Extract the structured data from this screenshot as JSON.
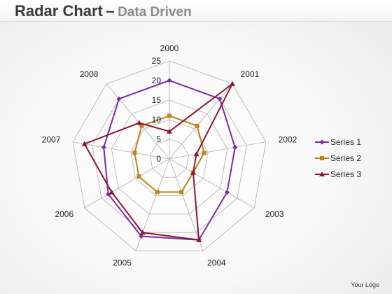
{
  "header": {
    "title": "Radar Chart",
    "dash": "–",
    "subtitle": "Data Driven"
  },
  "footer": {
    "logo_text": "Your Logo"
  },
  "colors": {
    "series1": "#7b2ca5",
    "series2": "#c08418",
    "series3": "#8a1733",
    "grid": "#bdbdbd"
  },
  "chart_data": {
    "type": "radar",
    "categories": [
      "2000",
      "2001",
      "2002",
      "2003",
      "2004",
      "2005",
      "2006",
      "2007",
      "2008"
    ],
    "scale_labels": [
      "0",
      "5",
      "10",
      "15",
      "20",
      "25"
    ],
    "rmax": 25,
    "series": [
      {
        "name": "Series 1",
        "marker": "diamond",
        "color": "#7b2ca5",
        "values": [
          20,
          20,
          17,
          17,
          22,
          21,
          18,
          17,
          20
        ]
      },
      {
        "name": "Series 2",
        "marker": "square",
        "color": "#c08418",
        "values": [
          11,
          11,
          9,
          7,
          9,
          9,
          9,
          9,
          11
        ]
      },
      {
        "name": "Series 3",
        "marker": "triangle",
        "color": "#8a1733",
        "values": [
          7,
          25,
          7,
          7,
          22,
          20,
          17,
          22,
          12
        ]
      }
    ],
    "legend_position": "right",
    "grid": true
  }
}
